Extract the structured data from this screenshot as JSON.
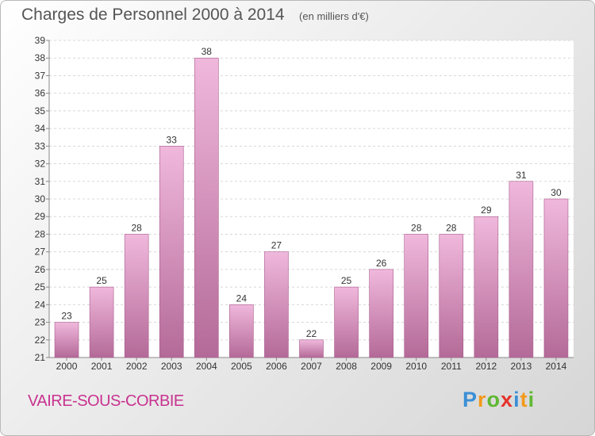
{
  "title": "Charges de Personnel 2000 à 2014",
  "subtitle": "(en milliers d'€)",
  "commune": "VAIRE-SOUS-CORBIE",
  "logo": {
    "letters": [
      "P",
      "r",
      "o",
      "x",
      "i",
      "t",
      "i"
    ],
    "colors": [
      "#3b8fd6",
      "#f29a1c",
      "#5fb832",
      "#e5342b",
      "#3b8fd6",
      "#f29a1c",
      "#5fb832"
    ]
  },
  "colors": {
    "bar_light": "#f0b8dc",
    "bar_dark": "#b46a98",
    "title": "#555555",
    "commune": "#c8338f"
  },
  "chart_data": {
    "type": "bar",
    "categories": [
      "2000",
      "2001",
      "2002",
      "2003",
      "2004",
      "2005",
      "2006",
      "2007",
      "2008",
      "2009",
      "2010",
      "2011",
      "2012",
      "2013",
      "2014"
    ],
    "values": [
      23,
      25,
      28,
      33,
      38,
      24,
      27,
      22,
      25,
      26,
      28,
      28,
      29,
      31,
      30
    ],
    "ylim": [
      21,
      39
    ],
    "yticks": [
      21,
      22,
      23,
      24,
      25,
      26,
      27,
      28,
      29,
      30,
      31,
      32,
      33,
      34,
      35,
      36,
      37,
      38,
      39
    ],
    "grid": true,
    "title": "Charges de Personnel 2000 à 2014",
    "xlabel": "",
    "ylabel": ""
  }
}
